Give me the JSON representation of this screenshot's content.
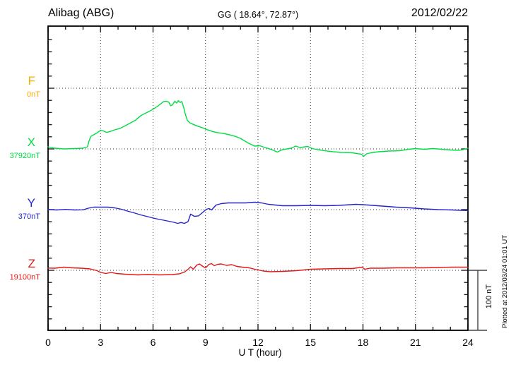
{
  "header": {
    "station": "Alibag (ABG)",
    "coordinates_gg": "GG ( 18.64°,  72.87°)",
    "date": "2012/02/22"
  },
  "chart_data": {
    "type": "line",
    "station": "Alibag (ABG)",
    "coordinates_gg": "GG ( 18.64°,  72.87°)",
    "date": "2012/02/22",
    "xlabel": "U T (hour)",
    "x_ticks": [
      "0",
      "3",
      "6",
      "9",
      "12",
      "15",
      "18",
      "21",
      "24"
    ],
    "x_range": [
      0,
      24
    ],
    "grid": "dotted",
    "minor_tick_nT": 20,
    "scale_bar": {
      "label": "100 nT",
      "nT": 100
    },
    "plotted_note": "Plotted at 2012/03/24 01:01 UT",
    "axis_color": "#000000",
    "grid_color": "#333333",
    "series": [
      {
        "name": "F",
        "baseline_label": "0nT",
        "color": "#ffaa00",
        "points_hour_dnT": []
      },
      {
        "name": "X",
        "baseline_label": "37920nT",
        "color": "#00dd44",
        "points_hour_dnT": [
          [
            0,
            3.5
          ],
          [
            0.4,
            1.2
          ],
          [
            0.9,
            0
          ],
          [
            1.5,
            0.6
          ],
          [
            2.0,
            1.2
          ],
          [
            2.25,
            3.5
          ],
          [
            2.35,
            14
          ],
          [
            2.45,
            21
          ],
          [
            2.6,
            23.5
          ],
          [
            2.8,
            27
          ],
          [
            3.0,
            31
          ],
          [
            3.15,
            30
          ],
          [
            3.35,
            27.5
          ],
          [
            3.6,
            29.5
          ],
          [
            3.8,
            31.8
          ],
          [
            4.1,
            34
          ],
          [
            4.5,
            40
          ],
          [
            5.0,
            48
          ],
          [
            5.3,
            55.5
          ],
          [
            5.6,
            60
          ],
          [
            5.9,
            64.5
          ],
          [
            6.1,
            68
          ],
          [
            6.3,
            72
          ],
          [
            6.5,
            76.5
          ],
          [
            6.6,
            79
          ],
          [
            6.75,
            79.5
          ],
          [
            6.9,
            78
          ],
          [
            7.0,
            72
          ],
          [
            7.1,
            73
          ],
          [
            7.25,
            79.5
          ],
          [
            7.35,
            76.5
          ],
          [
            7.45,
            80.5
          ],
          [
            7.55,
            77.5
          ],
          [
            7.65,
            79
          ],
          [
            7.75,
            69.5
          ],
          [
            7.85,
            57.5
          ],
          [
            7.95,
            48
          ],
          [
            8.1,
            43.5
          ],
          [
            8.3,
            41
          ],
          [
            8.55,
            38
          ],
          [
            8.8,
            35.5
          ],
          [
            9.1,
            32
          ],
          [
            9.4,
            29
          ],
          [
            9.7,
            27
          ],
          [
            10.0,
            26
          ],
          [
            10.3,
            24
          ],
          [
            10.7,
            21
          ],
          [
            11.0,
            17.5
          ],
          [
            11.4,
            10.5
          ],
          [
            11.8,
            4.7
          ],
          [
            12.1,
            5.3
          ],
          [
            12.4,
            2.4
          ],
          [
            12.8,
            -1.2
          ],
          [
            13.1,
            -5.3
          ],
          [
            13.4,
            -1.2
          ],
          [
            13.9,
            1.2
          ],
          [
            14.15,
            4.7
          ],
          [
            14.4,
            2.4
          ],
          [
            14.85,
            4.1
          ],
          [
            15.1,
            0.6
          ],
          [
            15.4,
            -1.2
          ],
          [
            15.8,
            -3
          ],
          [
            16.3,
            -4.7
          ],
          [
            16.8,
            -6
          ],
          [
            17.4,
            -6.5
          ],
          [
            17.9,
            -8.8
          ],
          [
            18.05,
            -12.4
          ],
          [
            18.2,
            -8.2
          ],
          [
            18.45,
            -6.5
          ],
          [
            18.9,
            -4.7
          ],
          [
            19.5,
            -3.5
          ],
          [
            20.1,
            -3
          ],
          [
            20.6,
            -0.6
          ],
          [
            21.0,
            0.6
          ],
          [
            21.5,
            -0.6
          ],
          [
            22.0,
            0.6
          ],
          [
            22.5,
            -0.6
          ],
          [
            23.0,
            -1.8
          ],
          [
            23.5,
            -2.4
          ],
          [
            23.8,
            -0.6
          ],
          [
            24,
            1.2
          ]
        ]
      },
      {
        "name": "Y",
        "baseline_label": "370nT",
        "color": "#2525cc",
        "points_hour_dnT": [
          [
            0,
            0
          ],
          [
            0.5,
            -0.6
          ],
          [
            1,
            0.3
          ],
          [
            1.5,
            -0.6
          ],
          [
            2,
            -0.3
          ],
          [
            2.3,
            2.4
          ],
          [
            2.6,
            4.1
          ],
          [
            3.0,
            4.1
          ],
          [
            3.4,
            4.1
          ],
          [
            3.8,
            2.9
          ],
          [
            4.2,
            0.6
          ],
          [
            4.6,
            -2.9
          ],
          [
            4.9,
            -5.3
          ],
          [
            5.3,
            -8.8
          ],
          [
            5.7,
            -11.8
          ],
          [
            6.1,
            -14.7
          ],
          [
            6.5,
            -17.1
          ],
          [
            6.9,
            -19.4
          ],
          [
            7.2,
            -21.2
          ],
          [
            7.4,
            -22.9
          ],
          [
            7.6,
            -21.5
          ],
          [
            7.8,
            -22.9
          ],
          [
            8.0,
            -20
          ],
          [
            8.15,
            -7.5
          ],
          [
            8.35,
            -11
          ],
          [
            8.6,
            -10.5
          ],
          [
            8.9,
            -3
          ],
          [
            9.05,
            0.6
          ],
          [
            9.2,
            1.8
          ],
          [
            9.35,
            -0.6
          ],
          [
            9.6,
            7.6
          ],
          [
            9.9,
            10
          ],
          [
            10.3,
            11.2
          ],
          [
            10.8,
            11.2
          ],
          [
            11.3,
            11.2
          ],
          [
            11.8,
            12.4
          ],
          [
            12.2,
            11.2
          ],
          [
            12.6,
            8.8
          ],
          [
            13.4,
            6.5
          ],
          [
            14.2,
            6.5
          ],
          [
            15.0,
            7.1
          ],
          [
            15.8,
            6.5
          ],
          [
            16.6,
            7.1
          ],
          [
            17.3,
            8.2
          ],
          [
            17.6,
            8.8
          ],
          [
            18.3,
            7.6
          ],
          [
            19.1,
            5.9
          ],
          [
            19.9,
            4.1
          ],
          [
            20.7,
            2.9
          ],
          [
            21.5,
            1.2
          ],
          [
            22.3,
            0
          ],
          [
            23.1,
            -0.6
          ],
          [
            23.6,
            -1.2
          ],
          [
            24,
            -1.5
          ]
        ]
      },
      {
        "name": "Z",
        "baseline_label": "19100nT",
        "color": "#e01818",
        "points_hour_dnT": [
          [
            0,
            3.8
          ],
          [
            0.4,
            3.5
          ],
          [
            0.9,
            5.3
          ],
          [
            1.4,
            4.1
          ],
          [
            1.9,
            3.5
          ],
          [
            2.4,
            2.4
          ],
          [
            2.8,
            -0.6
          ],
          [
            3.0,
            -3.5
          ],
          [
            3.3,
            -5.3
          ],
          [
            3.6,
            -3.5
          ],
          [
            3.9,
            -5.3
          ],
          [
            4.4,
            -6.5
          ],
          [
            5.1,
            -7.6
          ],
          [
            5.7,
            -7.1
          ],
          [
            6.4,
            -7.6
          ],
          [
            7.1,
            -7.1
          ],
          [
            7.5,
            -5.9
          ],
          [
            7.8,
            -2.9
          ],
          [
            8.0,
            1.8
          ],
          [
            8.15,
            5.9
          ],
          [
            8.3,
            1.8
          ],
          [
            8.5,
            8.8
          ],
          [
            8.65,
            10.6
          ],
          [
            8.85,
            6.5
          ],
          [
            9.0,
            4.1
          ],
          [
            9.2,
            10
          ],
          [
            9.35,
            11.2
          ],
          [
            9.5,
            7.6
          ],
          [
            9.7,
            10
          ],
          [
            9.9,
            10.6
          ],
          [
            10.2,
            8.2
          ],
          [
            10.5,
            9.4
          ],
          [
            10.8,
            6.5
          ],
          [
            11.1,
            5.3
          ],
          [
            11.5,
            4.1
          ],
          [
            11.9,
            1.2
          ],
          [
            12.3,
            -1.2
          ],
          [
            12.7,
            -2.4
          ],
          [
            13.4,
            -1.8
          ],
          [
            14.2,
            -0.6
          ],
          [
            15.0,
            1.8
          ],
          [
            15.8,
            2.4
          ],
          [
            16.6,
            2.9
          ],
          [
            17.4,
            2.9
          ],
          [
            17.95,
            5.3
          ],
          [
            18.1,
            1.8
          ],
          [
            18.4,
            3.5
          ],
          [
            19.1,
            3.5
          ],
          [
            19.9,
            4.1
          ],
          [
            20.7,
            4.1
          ],
          [
            21.5,
            4.1
          ],
          [
            22.3,
            4.7
          ],
          [
            23.1,
            5.3
          ],
          [
            23.6,
            5.3
          ],
          [
            24,
            5.3
          ]
        ]
      }
    ]
  }
}
